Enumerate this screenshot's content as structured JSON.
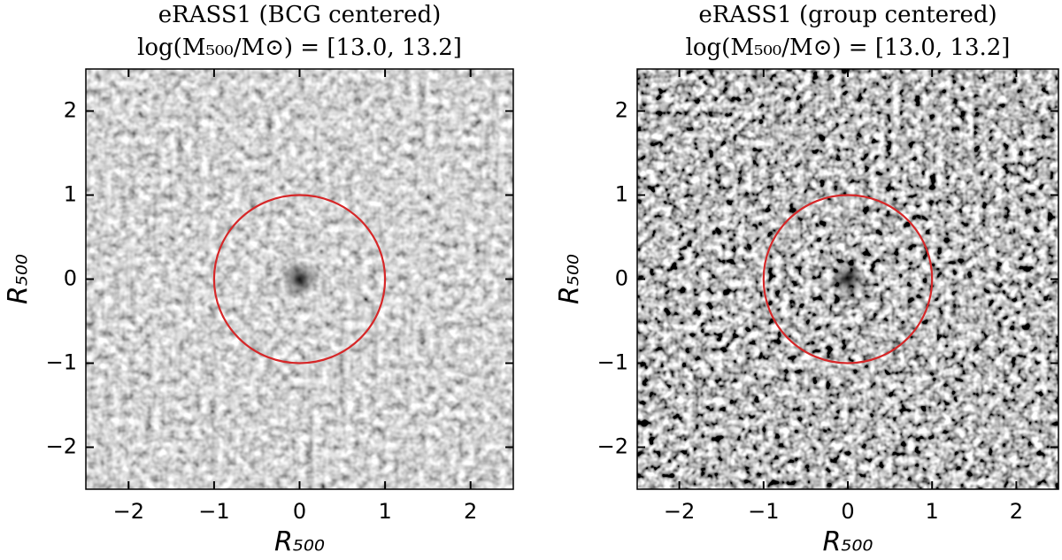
{
  "chart_data": [
    {
      "type": "image",
      "title": "eRASS1 (BCG centered)",
      "subtitle": "log(M₅₀₀/M⊙) = [13.0, 13.2]",
      "xlabel": "R₅₀₀",
      "ylabel": "R₅₀₀",
      "xlim": [
        -2.5,
        2.5
      ],
      "ylim": [
        -2.5,
        2.5
      ],
      "xticks": [
        {
          "value": -2,
          "label": "−2"
        },
        {
          "value": -1,
          "label": "−1"
        },
        0,
        1,
        2
      ],
      "yticks": [
        {
          "value": -2,
          "label": "−2"
        },
        {
          "value": -1,
          "label": "−1"
        },
        0,
        1,
        2
      ],
      "circle": {
        "center": [
          0,
          0
        ],
        "radius": 1,
        "color": "#d62728"
      }
    },
    {
      "type": "image",
      "title": "eRASS1 (group centered)",
      "subtitle": "log(M₅₀₀/M⊙) = [13.0, 13.2]",
      "xlabel": "R₅₀₀",
      "ylabel": "R₅₀₀",
      "xlim": [
        -2.5,
        2.5
      ],
      "ylim": [
        -2.5,
        2.5
      ],
      "xticks": [
        {
          "value": -2,
          "label": "−2"
        },
        {
          "value": -1,
          "label": "−1"
        },
        0,
        1,
        2
      ],
      "yticks": [
        {
          "value": -2,
          "label": "−2"
        },
        {
          "value": -1,
          "label": "−1"
        },
        0,
        1,
        2
      ],
      "circle": {
        "center": [
          0,
          0
        ],
        "radius": 1,
        "color": "#d62728"
      }
    }
  ]
}
